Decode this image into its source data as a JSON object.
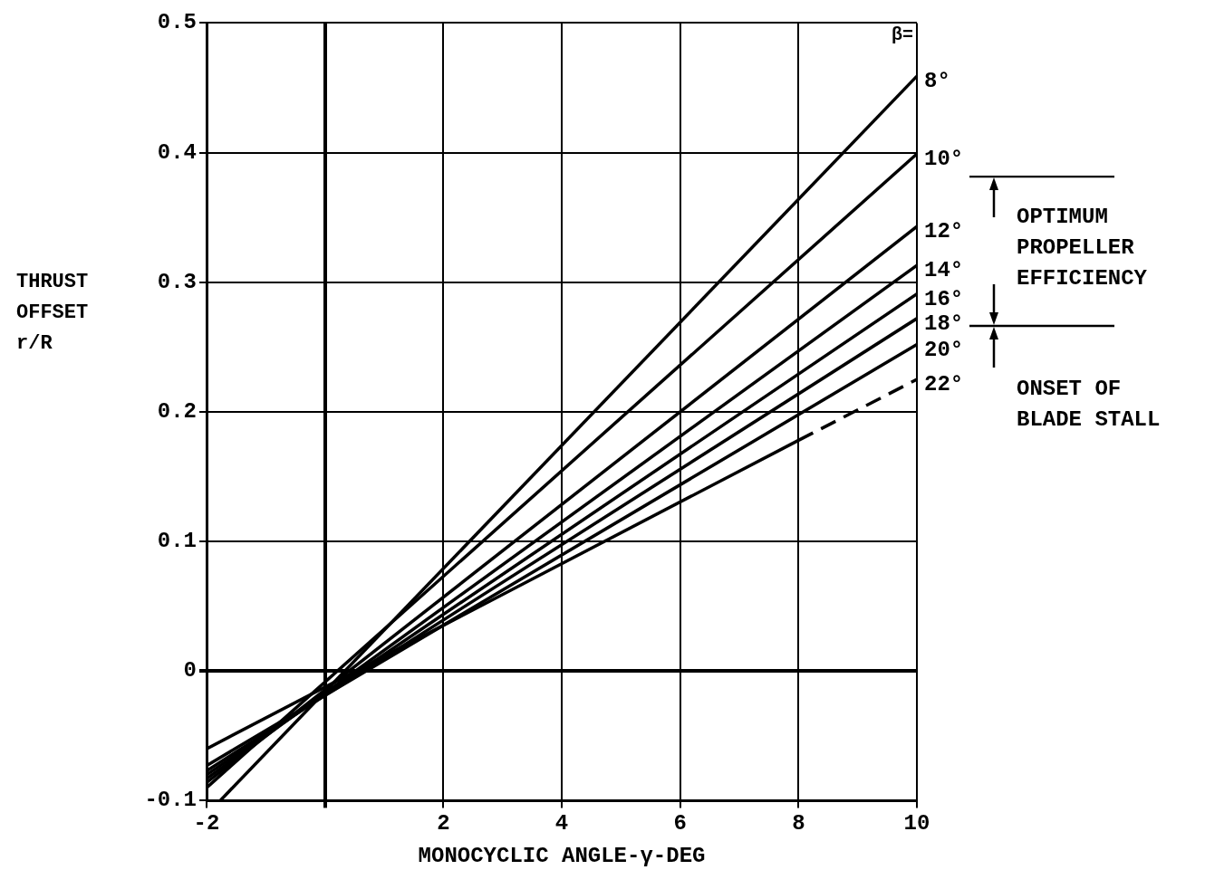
{
  "chart_data": {
    "type": "line",
    "xlabel": "MONOCYCLIC ANGLE-γ-DEG",
    "ylabel": "THRUST OFFSET r/R",
    "legend_title": "β=",
    "xlim": [
      -2,
      10
    ],
    "xticks": [
      -2,
      {
        "value": 0,
        "label": null
      },
      2,
      4,
      6,
      8,
      10
    ],
    "ylim": [
      -0.1,
      0.5
    ],
    "yticks": [
      -0.1,
      0,
      0.1,
      0.2,
      0.3,
      0.4,
      0.5
    ],
    "grid": true,
    "legend": "right",
    "marker": "none",
    "line_style": "solid",
    "series": [
      {
        "name": "8°",
        "color": "#000000",
        "x": [
          -1.77,
          10
        ],
        "values": [
          -0.1,
          0.459
        ]
      },
      {
        "name": "10°",
        "color": "#000000",
        "x": [
          -2,
          10
        ],
        "values": [
          -0.09,
          0.399
        ]
      },
      {
        "name": "12°",
        "color": "#000000",
        "x": [
          -2,
          10
        ],
        "values": [
          -0.086,
          0.343
        ]
      },
      {
        "name": "14°",
        "color": "#000000",
        "x": [
          -2,
          10
        ],
        "values": [
          -0.083,
          0.313
        ]
      },
      {
        "name": "16°",
        "color": "#000000",
        "x": [
          -2,
          10
        ],
        "values": [
          -0.08,
          0.291
        ]
      },
      {
        "name": "18°",
        "color": "#000000",
        "x": [
          -2,
          10
        ],
        "values": [
          -0.077,
          0.272
        ]
      },
      {
        "name": "20°",
        "color": "#000000",
        "x": [
          -2,
          10
        ],
        "values": [
          -0.073,
          0.252
        ]
      },
      {
        "color": "#000000",
        "x": [
          -2,
          8
        ],
        "values": [
          -0.06,
          0.178
        ]
      },
      {
        "name": "22°",
        "color": "#000000",
        "x": [
          8,
          10
        ],
        "values": [
          0.178,
          0.225
        ],
        "line_style": "dashed"
      }
    ],
    "annotations": [
      "OPTIMUM PROPELLER EFFICIENCY",
      "ONSET OF BLADE STALL"
    ]
  }
}
